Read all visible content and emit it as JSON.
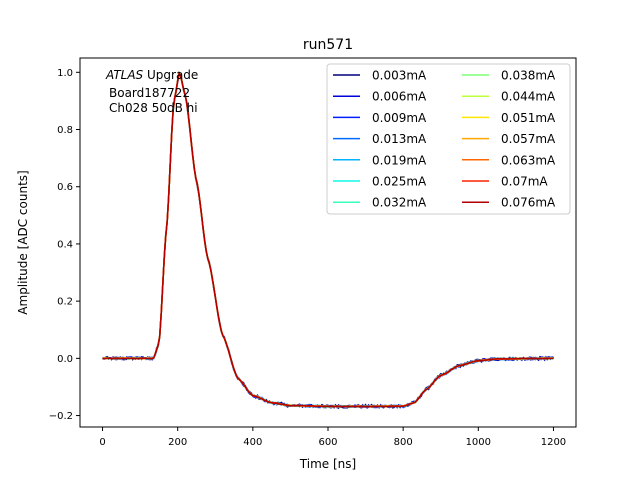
{
  "chart_data": {
    "type": "line",
    "title": "run571",
    "xlabel": "Time [ns]",
    "ylabel": "Amplitude [ADC counts]",
    "xlim": [
      -60,
      1260
    ],
    "ylim": [
      -0.24,
      1.05
    ],
    "xticks": [
      0,
      200,
      400,
      600,
      800,
      1000,
      1200
    ],
    "yticks": [
      -0.2,
      0.0,
      0.2,
      0.4,
      0.6,
      0.8,
      1.0
    ],
    "xtick_labels": [
      "0",
      "200",
      "400",
      "600",
      "800",
      "1000",
      "1200"
    ],
    "ytick_labels": [
      "−0.2",
      "0.0",
      "0.2",
      "0.4",
      "0.6",
      "0.8",
      "1.0"
    ],
    "annotation": {
      "italic": "ATLAS",
      "rest": " Upgrade",
      "line2": "Board187722",
      "line3": "Ch028 50dB hi"
    },
    "legend_position": "upper right",
    "legend_columns": 2,
    "pulse_shape": {
      "description_points": [
        [
          0,
          0.0
        ],
        [
          135,
          0.0
        ],
        [
          150,
          0.05
        ],
        [
          170,
          0.45
        ],
        [
          190,
          0.9
        ],
        [
          205,
          1.0
        ],
        [
          220,
          0.92
        ],
        [
          250,
          0.62
        ],
        [
          280,
          0.35
        ],
        [
          320,
          0.08
        ],
        [
          360,
          -0.07
        ],
        [
          400,
          -0.13
        ],
        [
          450,
          -0.155
        ],
        [
          500,
          -0.165
        ],
        [
          600,
          -0.168
        ],
        [
          700,
          -0.168
        ],
        [
          800,
          -0.167
        ],
        [
          830,
          -0.155
        ],
        [
          860,
          -0.11
        ],
        [
          900,
          -0.06
        ],
        [
          950,
          -0.025
        ],
        [
          1000,
          -0.008
        ],
        [
          1050,
          -0.002
        ],
        [
          1200,
          0.0
        ]
      ]
    },
    "series": [
      {
        "name": "0.003mA",
        "color": "#00007f",
        "noise": 0.006
      },
      {
        "name": "0.006mA",
        "color": "#0000d9",
        "noise": 0.005
      },
      {
        "name": "0.009mA",
        "color": "#0020ff",
        "noise": 0.004
      },
      {
        "name": "0.013mA",
        "color": "#006cff",
        "noise": 0.0035
      },
      {
        "name": "0.019mA",
        "color": "#00b4ff",
        "noise": 0.003
      },
      {
        "name": "0.025mA",
        "color": "#0ff8e7",
        "noise": 0.0025
      },
      {
        "name": "0.032mA",
        "color": "#39ffbd",
        "noise": 0.002
      },
      {
        "name": "0.038mA",
        "color": "#7cff79",
        "noise": 0.002
      },
      {
        "name": "0.044mA",
        "color": "#bdff39",
        "noise": 0.0018
      },
      {
        "name": "0.051mA",
        "color": "#ffe600",
        "noise": 0.0016
      },
      {
        "name": "0.057mA",
        "color": "#ffa700",
        "noise": 0.0015
      },
      {
        "name": "0.063mA",
        "color": "#ff6800",
        "noise": 0.0014
      },
      {
        "name": "0.07mA",
        "color": "#ff2200",
        "noise": 0.0012
      },
      {
        "name": "0.076mA",
        "color": "#b20000",
        "noise": 0.001
      }
    ]
  }
}
